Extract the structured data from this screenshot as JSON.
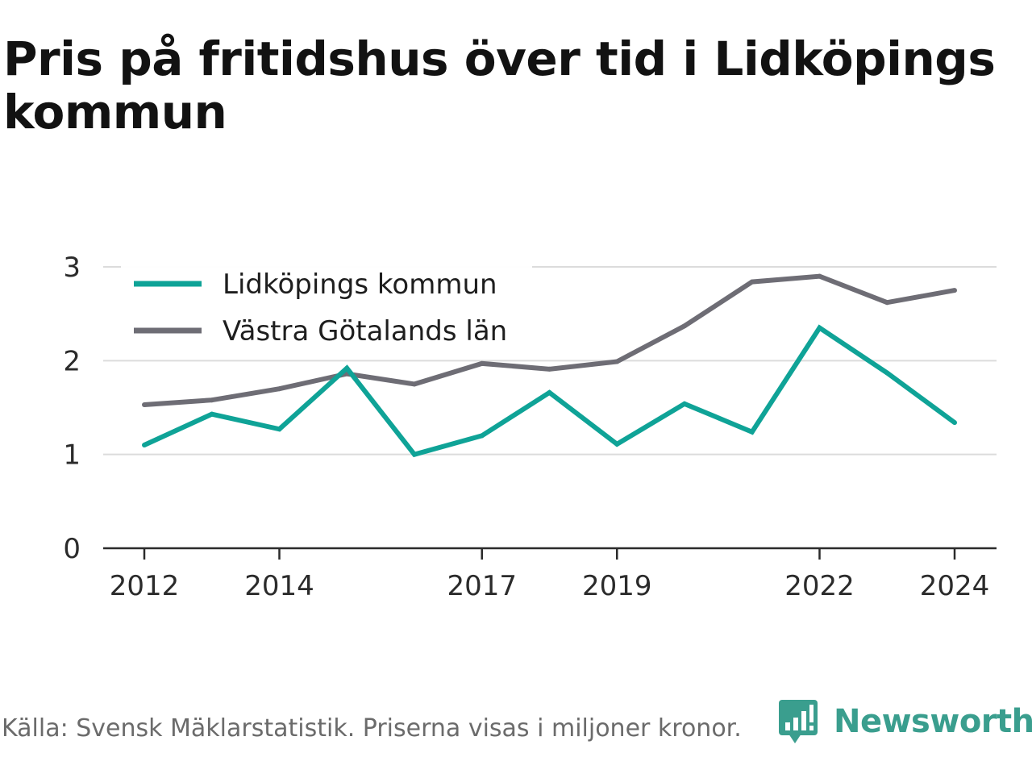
{
  "title": "Pris på fritidshus över tid i Lidköpings kommun",
  "source": "Källa: Svensk Mäklarstatistik. Priserna visas i miljoner kronor.",
  "brand": {
    "name": "Newsworthy",
    "color": "#3a9e8e"
  },
  "chart_data": {
    "type": "line",
    "x": [
      2012,
      2013,
      2014,
      2015,
      2016,
      2017,
      2018,
      2019,
      2020,
      2021,
      2022,
      2023,
      2024
    ],
    "x_tick_labels": [
      "2012",
      "2014",
      "2017",
      "2019",
      "2022",
      "2024"
    ],
    "y_ticks": [
      "0",
      "1",
      "2",
      "3"
    ],
    "ylim": [
      0,
      3
    ],
    "grid": true,
    "legend_placement": "top-left",
    "series": [
      {
        "name": "Lidköpings kommun",
        "color": "#0fa397",
        "values": [
          1.1,
          1.43,
          1.27,
          1.92,
          1.0,
          1.2,
          1.66,
          1.11,
          1.54,
          1.24,
          2.35,
          1.87,
          1.34
        ]
      },
      {
        "name": "Västra Götalands län",
        "color": "#6e6d75",
        "values": [
          1.53,
          1.58,
          1.7,
          1.86,
          1.75,
          1.97,
          1.91,
          1.99,
          2.37,
          2.84,
          2.9,
          2.62,
          2.75
        ]
      }
    ]
  }
}
